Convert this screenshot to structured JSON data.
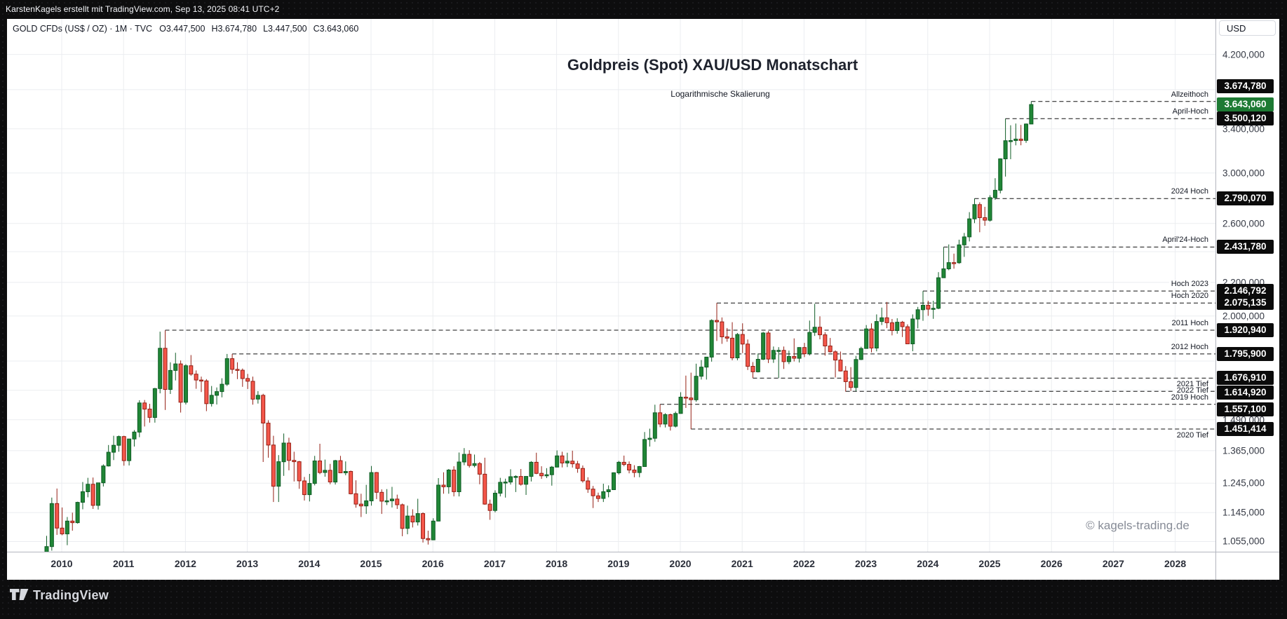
{
  "topbar": {
    "text": "KarstenKagels erstellt mit TradingView.com, Sep 13, 2025 08:41 UTC+2"
  },
  "legend": {
    "title": "GOLD CFDs (US$ / OZ) · 1M · TVC",
    "values": [
      "O3.447,500",
      "H3.674,780",
      "L3.447,500",
      "C3.643,060"
    ]
  },
  "annotations": {
    "title": "Goldpreis (Spot) XAU/USD Monatschart",
    "subtitle": "Logarithmische Skalierung",
    "watermark": "© kagels-trading.de"
  },
  "axis": {
    "currency": "USD",
    "years": [
      2010,
      2011,
      2012,
      2013,
      2014,
      2015,
      2016,
      2017,
      2018,
      2019,
      2020,
      2021,
      2022,
      2023,
      2024,
      2025,
      2026,
      2027,
      2028
    ],
    "ticks": [
      {
        "price": 4200,
        "label": "4.200,000"
      },
      {
        "price": 3400,
        "label": "3.400,000"
      },
      {
        "price": 3000,
        "label": "3.000,000"
      },
      {
        "price": 2600,
        "label": "2.600,000"
      },
      {
        "price": 2200,
        "label": "2.200,000"
      },
      {
        "price": 2000,
        "label": "2.000,000"
      },
      {
        "price": 1490,
        "label": "1.490,000"
      },
      {
        "price": 1365,
        "label": "1.365,000"
      },
      {
        "price": 1245,
        "label": "1.245,000"
      },
      {
        "price": 1145,
        "label": "1.145,000"
      },
      {
        "price": 1055,
        "label": "1.055,000"
      }
    ],
    "hidden_grid": [
      3800,
      2400,
      1760,
      1620
    ]
  },
  "current_price": {
    "price": 3643.06,
    "badge": "3.643,060",
    "color": "#1d7a33"
  },
  "levels": [
    {
      "name": "Allzeithoch",
      "price": 3674.78,
      "badge": "3.674,780",
      "start": {
        "y": 2025,
        "m": 9
      },
      "label_pos": "above",
      "badge_dy": -22
    },
    {
      "name": "April-Hoch",
      "price": 3500.12,
      "badge": "3.500,120",
      "start": {
        "y": 2025,
        "m": 4
      },
      "label_pos": "above",
      "badge_dy": 0
    },
    {
      "name": "2024 Hoch",
      "price": 2790.07,
      "badge": "2.790,070",
      "start": {
        "y": 2024,
        "m": 10
      },
      "label_pos": "above",
      "badge_dy": 0
    },
    {
      "name": "April'24-Hoch",
      "price": 2431.78,
      "badge": "2.431,780",
      "start": {
        "y": 2024,
        "m": 4
      },
      "label_pos": "above",
      "badge_dy": 0
    },
    {
      "name": "Hoch 2023",
      "price": 2146.792,
      "badge": "2.146,792",
      "start": {
        "y": 2023,
        "m": 12
      },
      "label_pos": "above",
      "badge_dy": 0
    },
    {
      "name": "Hoch 2020",
      "price": 2075.135,
      "badge": "2.075,135",
      "start": {
        "y": 2020,
        "m": 8
      },
      "label_pos": "above",
      "badge_dy": 0
    },
    {
      "name": "2011 Hoch",
      "price": 1920.94,
      "badge": "1.920,940",
      "start": {
        "y": 2011,
        "m": 9
      },
      "label_pos": "above",
      "badge_dy": 0
    },
    {
      "name": "2012 Hoch",
      "price": 1795.9,
      "badge": "1.795,900",
      "start": {
        "y": 2012,
        "m": 10
      },
      "label_pos": "above",
      "badge_dy": 0
    },
    {
      "name": "2021 Tief",
      "price": 1676.91,
      "badge": "1.676,910",
      "start": {
        "y": 2021,
        "m": 3
      },
      "label_pos": "below",
      "badge_dy": 0
    },
    {
      "name": "2022 Tief",
      "price": 1614.92,
      "badge": "1.614,920",
      "start": {
        "y": 2022,
        "m": 9
      },
      "label_pos": "on",
      "badge_dy": 2
    },
    {
      "name": "2019 Hoch",
      "price": 1557.1,
      "badge": "1.557,100",
      "start": {
        "y": 2019,
        "m": 9
      },
      "label_pos": "above",
      "badge_dy": 7
    },
    {
      "name": "2020 Tief",
      "price": 1451.414,
      "badge": "1.451,414",
      "start": {
        "y": 2020,
        "m": 3
      },
      "label_pos": "below",
      "badge_dy": 0
    }
  ],
  "footer": {
    "brand": "TradingView"
  },
  "chart_data": {
    "type": "candlestick",
    "symbol": "GOLD CFDs (US$ / OZ)",
    "exchange": "TVC",
    "interval": "1M",
    "scale": "logarithmic",
    "ylim": [
      1024,
      4645
    ],
    "x_years": [
      2010,
      2028
    ],
    "colors": {
      "up_fill": "#208636",
      "up_border": "#0f5c25",
      "down_fill": "#f4564a",
      "down_border": "#952015"
    },
    "start": {
      "y": 2009,
      "m": 10
    },
    "ohlc": [
      [
        1008,
        1072,
        1004,
        1040
      ],
      [
        1040,
        1195,
        1028,
        1175
      ],
      [
        1175,
        1226,
        1075,
        1096
      ],
      [
        1096,
        1162,
        1074,
        1078
      ],
      [
        1078,
        1131,
        1044,
        1118
      ],
      [
        1118,
        1145,
        1088,
        1113
      ],
      [
        1113,
        1181,
        1110,
        1179
      ],
      [
        1179,
        1249,
        1156,
        1215
      ],
      [
        1215,
        1264,
        1196,
        1241
      ],
      [
        1241,
        1265,
        1157,
        1169
      ],
      [
        1169,
        1246,
        1155,
        1246
      ],
      [
        1246,
        1313,
        1233,
        1307
      ],
      [
        1307,
        1387,
        1305,
        1359
      ],
      [
        1359,
        1424,
        1329,
        1386
      ],
      [
        1386,
        1425,
        1361,
        1421
      ],
      [
        1421,
        1424,
        1308,
        1327
      ],
      [
        1327,
        1412,
        1309,
        1411
      ],
      [
        1411,
        1447,
        1381,
        1439
      ],
      [
        1439,
        1575,
        1418,
        1563
      ],
      [
        1563,
        1576,
        1462,
        1536
      ],
      [
        1536,
        1559,
        1478,
        1500
      ],
      [
        1500,
        1631,
        1478,
        1628
      ],
      [
        1628,
        1913,
        1606,
        1825
      ],
      [
        1825,
        1920,
        1532,
        1624
      ],
      [
        1624,
        1754,
        1603,
        1714
      ],
      [
        1714,
        1802,
        1666,
        1746
      ],
      [
        1746,
        1763,
        1521,
        1566
      ],
      [
        1566,
        1744,
        1556,
        1737
      ],
      [
        1737,
        1790,
        1688,
        1696
      ],
      [
        1696,
        1714,
        1627,
        1668
      ],
      [
        1668,
        1684,
        1612,
        1664
      ],
      [
        1664,
        1672,
        1527,
        1560
      ],
      [
        1560,
        1640,
        1547,
        1597
      ],
      [
        1597,
        1633,
        1556,
        1614
      ],
      [
        1614,
        1676,
        1588,
        1648
      ],
      [
        1648,
        1796,
        1640,
        1772
      ],
      [
        1772,
        1796,
        1698,
        1719
      ],
      [
        1719,
        1754,
        1672,
        1715
      ],
      [
        1715,
        1723,
        1636,
        1675
      ],
      [
        1675,
        1697,
        1626,
        1662
      ],
      [
        1662,
        1684,
        1555,
        1580
      ],
      [
        1580,
        1616,
        1560,
        1597
      ],
      [
        1597,
        1604,
        1322,
        1476
      ],
      [
        1476,
        1488,
        1338,
        1387
      ],
      [
        1387,
        1424,
        1180,
        1234
      ],
      [
        1234,
        1348,
        1180,
        1323
      ],
      [
        1323,
        1433,
        1271,
        1395
      ],
      [
        1395,
        1416,
        1291,
        1328
      ],
      [
        1328,
        1361,
        1251,
        1323
      ],
      [
        1323,
        1326,
        1225,
        1253
      ],
      [
        1253,
        1267,
        1185,
        1205
      ],
      [
        1205,
        1278,
        1182,
        1244
      ],
      [
        1244,
        1345,
        1237,
        1326
      ],
      [
        1326,
        1392,
        1277,
        1283
      ],
      [
        1283,
        1331,
        1268,
        1291
      ],
      [
        1291,
        1315,
        1241,
        1249
      ],
      [
        1249,
        1330,
        1240,
        1327
      ],
      [
        1327,
        1345,
        1281,
        1282
      ],
      [
        1282,
        1324,
        1273,
        1287
      ],
      [
        1287,
        1290,
        1206,
        1208
      ],
      [
        1208,
        1255,
        1161,
        1173
      ],
      [
        1173,
        1208,
        1131,
        1167
      ],
      [
        1167,
        1239,
        1141,
        1184
      ],
      [
        1184,
        1307,
        1168,
        1283
      ],
      [
        1283,
        1285,
        1190,
        1213
      ],
      [
        1213,
        1223,
        1141,
        1183
      ],
      [
        1183,
        1224,
        1170,
        1184
      ],
      [
        1184,
        1232,
        1162,
        1190
      ],
      [
        1190,
        1205,
        1157,
        1171
      ],
      [
        1171,
        1175,
        1071,
        1095
      ],
      [
        1095,
        1168,
        1077,
        1134
      ],
      [
        1134,
        1156,
        1098,
        1115
      ],
      [
        1115,
        1191,
        1104,
        1142
      ],
      [
        1142,
        1146,
        1052,
        1064
      ],
      [
        1064,
        1088,
        1046,
        1060
      ],
      [
        1060,
        1127,
        1060,
        1118
      ],
      [
        1118,
        1263,
        1117,
        1238
      ],
      [
        1238,
        1284,
        1208,
        1232
      ],
      [
        1232,
        1296,
        1208,
        1292
      ],
      [
        1292,
        1306,
        1199,
        1215
      ],
      [
        1215,
        1358,
        1199,
        1322
      ],
      [
        1322,
        1375,
        1310,
        1351
      ],
      [
        1351,
        1367,
        1301,
        1309
      ],
      [
        1309,
        1350,
        1302,
        1316
      ],
      [
        1316,
        1322,
        1241,
        1277
      ],
      [
        1277,
        1338,
        1171,
        1173
      ],
      [
        1173,
        1188,
        1122,
        1152
      ],
      [
        1152,
        1220,
        1146,
        1210
      ],
      [
        1210,
        1264,
        1199,
        1248
      ],
      [
        1248,
        1261,
        1195,
        1249
      ],
      [
        1249,
        1295,
        1240,
        1268
      ],
      [
        1268,
        1273,
        1214,
        1269
      ],
      [
        1269,
        1296,
        1236,
        1241
      ],
      [
        1241,
        1270,
        1204,
        1269
      ],
      [
        1269,
        1325,
        1251,
        1321
      ],
      [
        1321,
        1357,
        1277,
        1280
      ],
      [
        1280,
        1306,
        1260,
        1271
      ],
      [
        1271,
        1299,
        1263,
        1275
      ],
      [
        1275,
        1307,
        1236,
        1303
      ],
      [
        1303,
        1366,
        1302,
        1345
      ],
      [
        1345,
        1361,
        1302,
        1318
      ],
      [
        1318,
        1357,
        1303,
        1325
      ],
      [
        1325,
        1365,
        1301,
        1315
      ],
      [
        1315,
        1326,
        1282,
        1298
      ],
      [
        1298,
        1309,
        1247,
        1253
      ],
      [
        1253,
        1266,
        1211,
        1224
      ],
      [
        1224,
        1235,
        1160,
        1201
      ],
      [
        1201,
        1212,
        1180,
        1192
      ],
      [
        1192,
        1243,
        1180,
        1215
      ],
      [
        1215,
        1237,
        1196,
        1222
      ],
      [
        1222,
        1284,
        1221,
        1282
      ],
      [
        1282,
        1326,
        1276,
        1321
      ],
      [
        1321,
        1346,
        1306,
        1313
      ],
      [
        1313,
        1324,
        1280,
        1292
      ],
      [
        1292,
        1310,
        1266,
        1283
      ],
      [
        1283,
        1307,
        1266,
        1305
      ],
      [
        1305,
        1439,
        1305,
        1409
      ],
      [
        1409,
        1453,
        1381,
        1414
      ],
      [
        1414,
        1555,
        1400,
        1520
      ],
      [
        1520,
        1557,
        1459,
        1472
      ],
      [
        1472,
        1518,
        1458,
        1512
      ],
      [
        1512,
        1516,
        1445,
        1463
      ],
      [
        1463,
        1525,
        1458,
        1517
      ],
      [
        1517,
        1611,
        1516,
        1589
      ],
      [
        1589,
        1689,
        1541,
        1585
      ],
      [
        1585,
        1703,
        1451,
        1577
      ],
      [
        1577,
        1747,
        1568,
        1686
      ],
      [
        1686,
        1765,
        1670,
        1730
      ],
      [
        1730,
        1779,
        1670,
        1780
      ],
      [
        1780,
        1981,
        1757,
        1975
      ],
      [
        1975,
        2075,
        1863,
        1967
      ],
      [
        1967,
        1992,
        1848,
        1885
      ],
      [
        1885,
        1933,
        1859,
        1878
      ],
      [
        1878,
        1965,
        1764,
        1776
      ],
      [
        1776,
        1906,
        1764,
        1898
      ],
      [
        1898,
        1959,
        1800,
        1847
      ],
      [
        1847,
        1871,
        1716,
        1734
      ],
      [
        1734,
        1755,
        1677,
        1707
      ],
      [
        1707,
        1798,
        1704,
        1769
      ],
      [
        1769,
        1912,
        1765,
        1906
      ],
      [
        1906,
        1916,
        1750,
        1770
      ],
      [
        1770,
        1834,
        1751,
        1814
      ],
      [
        1812,
        1831,
        1677,
        1814
      ],
      [
        1814,
        1834,
        1721,
        1757
      ],
      [
        1757,
        1813,
        1745,
        1783
      ],
      [
        1783,
        1877,
        1758,
        1774
      ],
      [
        1774,
        1830,
        1753,
        1829
      ],
      [
        1829,
        1853,
        1780,
        1797
      ],
      [
        1797,
        1974,
        1788,
        1909
      ],
      [
        1909,
        2070,
        1890,
        1937
      ],
      [
        1937,
        1998,
        1872,
        1896
      ],
      [
        1896,
        1910,
        1787,
        1837
      ],
      [
        1837,
        1879,
        1803,
        1807
      ],
      [
        1807,
        1814,
        1680,
        1765
      ],
      [
        1765,
        1808,
        1709,
        1711
      ],
      [
        1711,
        1735,
        1614,
        1660
      ],
      [
        1660,
        1730,
        1617,
        1633
      ],
      [
        1633,
        1786,
        1616,
        1768
      ],
      [
        1768,
        1833,
        1765,
        1824
      ],
      [
        1824,
        1949,
        1823,
        1928
      ],
      [
        1928,
        1959,
        1804,
        1826
      ],
      [
        1826,
        2009,
        1809,
        1969
      ],
      [
        1969,
        2048,
        1949,
        1990
      ],
      [
        1990,
        2081,
        1932,
        1962
      ],
      [
        1962,
        1983,
        1893,
        1919
      ],
      [
        1919,
        1987,
        1902,
        1965
      ],
      [
        1965,
        1972,
        1884,
        1940
      ],
      [
        1940,
        1953,
        1848,
        1848
      ],
      [
        1848,
        2009,
        1810,
        1983
      ],
      [
        1983,
        2052,
        1931,
        2036
      ],
      [
        2036,
        2146,
        1973,
        2062
      ],
      [
        2062,
        2088,
        2001,
        2039
      ],
      [
        2039,
        2088,
        1984,
        2044
      ],
      [
        2044,
        2265,
        2039,
        2229
      ],
      [
        2229,
        2431,
        2228,
        2286
      ],
      [
        2286,
        2450,
        2277,
        2327
      ],
      [
        2327,
        2387,
        2287,
        2326
      ],
      [
        2326,
        2483,
        2319,
        2447
      ],
      [
        2447,
        2531,
        2365,
        2503
      ],
      [
        2503,
        2685,
        2471,
        2634
      ],
      [
        2634,
        2790,
        2603,
        2743
      ],
      [
        2743,
        2761,
        2536,
        2643
      ],
      [
        2643,
        2726,
        2583,
        2624
      ],
      [
        2624,
        2817,
        2614,
        2798
      ],
      [
        2798,
        2956,
        2780,
        2857
      ],
      [
        2857,
        3127,
        2832,
        3123
      ],
      [
        3123,
        3500,
        2970,
        3288
      ],
      [
        3288,
        3435,
        3120,
        3289
      ],
      [
        3289,
        3452,
        3245,
        3303
      ],
      [
        3303,
        3438,
        3246,
        3290
      ],
      [
        3290,
        3453,
        3268,
        3447
      ],
      [
        3447.5,
        3674.78,
        3447.5,
        3643.06
      ]
    ]
  }
}
